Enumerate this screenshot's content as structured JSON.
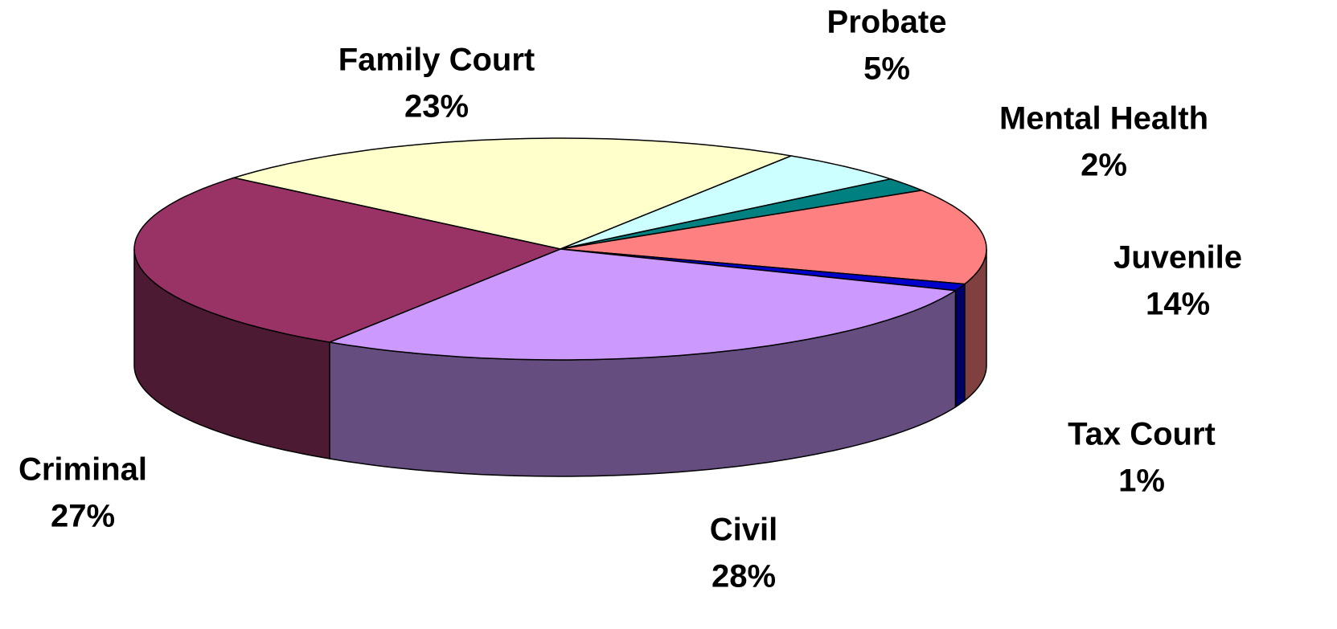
{
  "chart_data": {
    "type": "pie",
    "categories": [
      "Family Court",
      "Probate",
      "Mental Health",
      "Juvenile",
      "Tax Court",
      "Civil",
      "Criminal"
    ],
    "values": [
      23,
      5,
      2,
      14,
      1,
      28,
      27
    ],
    "value_labels": [
      "23%",
      "5%",
      "2%",
      "14%",
      "1%",
      "28%",
      "27%"
    ],
    "colors": [
      "#ffffcc",
      "#ccffff",
      "#008080",
      "#ff8080",
      "#0000cc",
      "#cc99ff",
      "#993366"
    ]
  }
}
